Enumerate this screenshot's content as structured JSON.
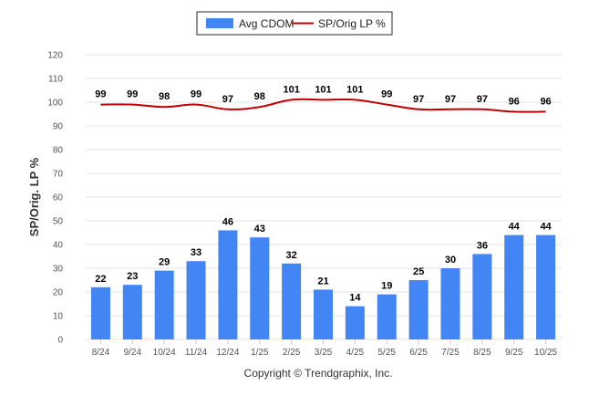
{
  "chart_data": {
    "type": "bar",
    "categories": [
      "8/24",
      "9/24",
      "10/24",
      "11/24",
      "12/24",
      "1/25",
      "2/25",
      "3/25",
      "4/25",
      "5/25",
      "6/25",
      "7/25",
      "8/25",
      "9/25",
      "10/25"
    ],
    "series": [
      {
        "name": "Avg CDOM",
        "kind": "bar",
        "color": "#4285f4",
        "values": [
          22,
          23,
          29,
          33,
          46,
          43,
          32,
          21,
          14,
          19,
          25,
          30,
          36,
          44,
          44
        ]
      },
      {
        "name": "SP/Orig LP %",
        "kind": "line",
        "color": "#c00000",
        "values": [
          99,
          99,
          98,
          99,
          97,
          98,
          101,
          101,
          101,
          99,
          97,
          97,
          97,
          96,
          96
        ]
      }
    ],
    "title": "",
    "xlabel": "",
    "ylabel": "SP/Orig. LP %",
    "ylim": [
      0,
      120
    ],
    "yticks": [
      0,
      10,
      20,
      30,
      40,
      50,
      60,
      70,
      80,
      90,
      100,
      110,
      120
    ],
    "legend": "top-center",
    "grid": true
  },
  "footer": {
    "copyright": "Copyright © Trendgraphix, Inc."
  }
}
